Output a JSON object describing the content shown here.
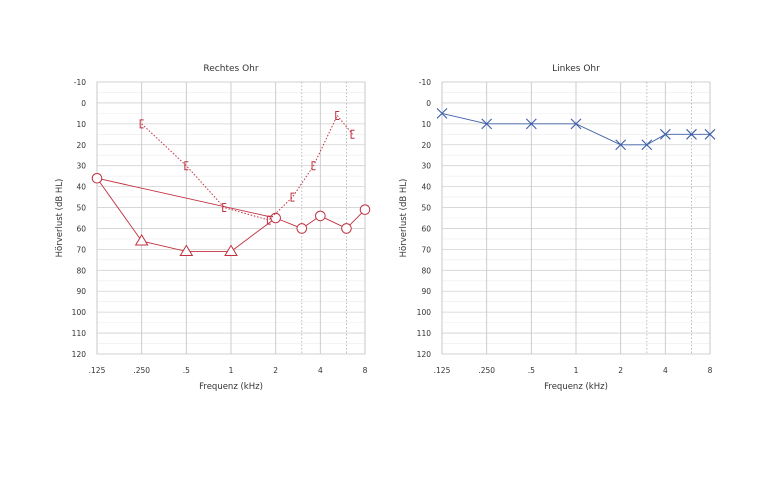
{
  "chart_data": [
    {
      "type": "line",
      "title": "Rechtes Ohr",
      "xlabel": "Frequenz (kHz)",
      "ylabel": "Hörverlust (dB HL)",
      "x_tick_labels": [
        ".125",
        ".250",
        ".5",
        "1",
        "2",
        "4",
        "8"
      ],
      "x_ticks_khz": [
        0.125,
        0.25,
        0.5,
        1,
        2,
        4,
        8
      ],
      "y_ticks": [
        -10,
        0,
        10,
        20,
        30,
        40,
        50,
        60,
        70,
        80,
        90,
        100,
        110,
        120
      ],
      "ylim": [
        -10,
        120
      ],
      "y_inverted": true,
      "x_scale": "log2",
      "xlim_khz": [
        0.125,
        8
      ],
      "grid": true,
      "dotted_gridlines_khz": [
        3,
        6
      ],
      "color": "#c0313f",
      "series": [
        {
          "marker": "circle",
          "line": "solid",
          "points": [
            [
              0.125,
              36
            ],
            [
              2,
              55
            ],
            [
              3,
              60
            ],
            [
              4,
              54
            ],
            [
              6,
              60
            ],
            [
              8,
              51
            ]
          ]
        },
        {
          "marker": "triangle",
          "line": "solid",
          "points": [
            [
              0.25,
              66
            ],
            [
              0.5,
              71
            ],
            [
              1,
              71
            ]
          ]
        },
        {
          "marker": "bracket",
          "line": "dotted",
          "points": [
            [
              0.25,
              10
            ],
            [
              0.5,
              30
            ],
            [
              0.9,
              50
            ],
            [
              1.8,
              56
            ],
            [
              2.6,
              45
            ],
            [
              3.6,
              30
            ],
            [
              5.2,
              6
            ],
            [
              6.6,
              15
            ]
          ]
        }
      ],
      "connectors": [
        {
          "from": [
            0.125,
            36
          ],
          "to": [
            0.25,
            66
          ]
        },
        {
          "from": [
            1,
            71
          ],
          "to": [
            2,
            55
          ]
        }
      ]
    },
    {
      "type": "line",
      "title": "Linkes Ohr",
      "xlabel": "Frequenz (kHz)",
      "ylabel": "Hörverlust (dB HL)",
      "x_tick_labels": [
        ".125",
        ".250",
        ".5",
        "1",
        "2",
        "4",
        "8"
      ],
      "x_ticks_khz": [
        0.125,
        0.25,
        0.5,
        1,
        2,
        4,
        8
      ],
      "y_ticks": [
        -10,
        0,
        10,
        20,
        30,
        40,
        50,
        60,
        70,
        80,
        90,
        100,
        110,
        120
      ],
      "ylim": [
        -10,
        120
      ],
      "y_inverted": true,
      "x_scale": "log2",
      "xlim_khz": [
        0.125,
        8
      ],
      "grid": true,
      "dotted_gridlines_khz": [
        3,
        6
      ],
      "color": "#3d5fa8",
      "series": [
        {
          "marker": "x",
          "line": "solid",
          "points": [
            [
              0.125,
              5
            ],
            [
              0.25,
              10
            ],
            [
              0.5,
              10
            ],
            [
              1,
              10
            ],
            [
              2,
              20
            ],
            [
              3,
              20
            ],
            [
              4,
              15
            ],
            [
              6,
              15
            ],
            [
              8,
              15
            ]
          ]
        }
      ],
      "connectors": []
    }
  ]
}
